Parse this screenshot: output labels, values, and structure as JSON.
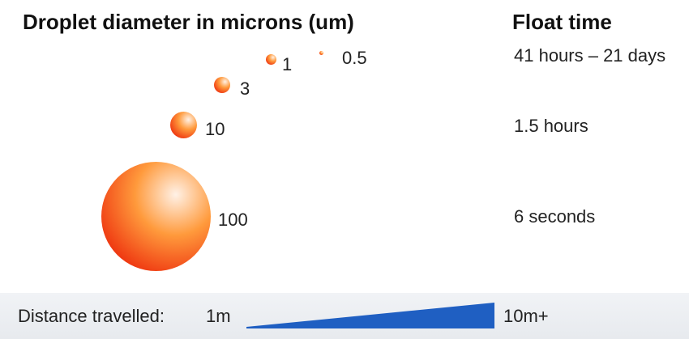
{
  "header": {
    "left_title": "Droplet diameter in microns (um)",
    "right_title": "Float time"
  },
  "droplets": [
    {
      "diameter": "0.5"
    },
    {
      "diameter": "1"
    },
    {
      "diameter": "3"
    },
    {
      "diameter": "10"
    },
    {
      "diameter": "100"
    }
  ],
  "float_times": [
    "41 hours – 21 days",
    "1.5 hours",
    "6 seconds"
  ],
  "distance": {
    "label": "Distance travelled:",
    "min": "1m",
    "max": "10m+"
  },
  "colors": {
    "droplet_light": "#fff1e6",
    "droplet_mid": "#ff9a3c",
    "droplet_dark": "#ef3a12",
    "wedge": "#1f5fc2"
  }
}
